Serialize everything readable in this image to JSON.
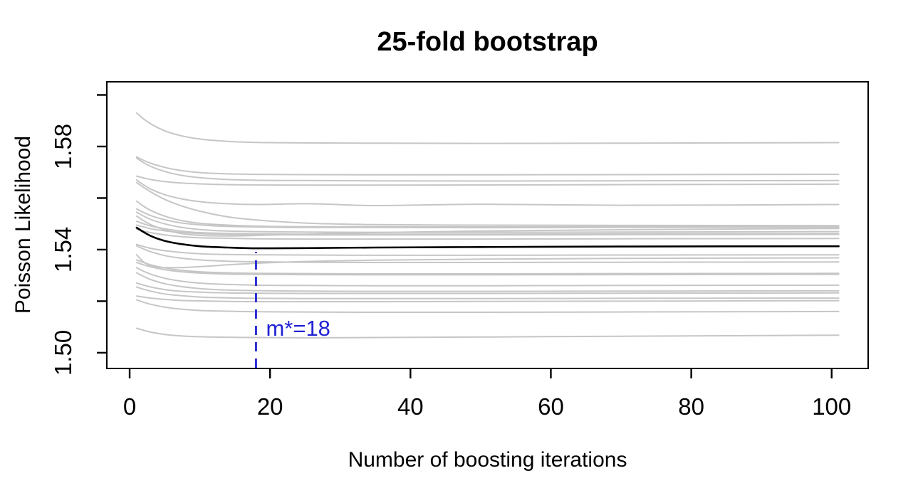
{
  "chart_data": {
    "type": "line",
    "title": "25-fold bootstrap",
    "xlabel": "Number of boosting iterations",
    "ylabel": "Poisson Likelihood",
    "grid": false,
    "legend": "none",
    "xlim": [
      -3.25,
      105.2
    ],
    "ylim": [
      1.4939,
      1.6051
    ],
    "xticks": [
      {
        "v": 0,
        "label": "0"
      },
      {
        "v": 20,
        "label": "20"
      },
      {
        "v": 40,
        "label": "40"
      },
      {
        "v": 60,
        "label": "60"
      },
      {
        "v": 80,
        "label": "80"
      },
      {
        "v": 100,
        "label": "100"
      }
    ],
    "yticks": [
      {
        "v": 1.5,
        "label": "1.50"
      },
      {
        "v": 1.52,
        "label": ""
      },
      {
        "v": 1.54,
        "label": "1.54"
      },
      {
        "v": 1.56,
        "label": ""
      },
      {
        "v": 1.58,
        "label": "1.58"
      },
      {
        "v": 1.6,
        "label": ""
      }
    ],
    "colors": {
      "replications": "#c6c6c6",
      "mean": "#000000",
      "annotation": "#2222d4"
    },
    "annotation": {
      "x": 18,
      "y_top": 1.5405,
      "label": "m*=18",
      "line_style": "dashed"
    },
    "x": [
      1,
      2,
      3,
      5,
      7,
      10,
      14,
      18,
      25,
      35,
      50,
      70,
      101
    ],
    "mean_series": {
      "name": "mean-cv-risk",
      "values": [
        1.5485,
        1.5468,
        1.5453,
        1.5434,
        1.5423,
        1.5413,
        1.5408,
        1.5405,
        1.5406,
        1.5408,
        1.541,
        1.5412,
        1.5413
      ]
    },
    "replication_series": [
      [
        1.593,
        1.5907,
        1.5888,
        1.5861,
        1.5844,
        1.5829,
        1.582,
        1.5816,
        1.5814,
        1.5813,
        1.5812,
        1.5813,
        1.5815
      ],
      [
        1.576,
        1.5746,
        1.5735,
        1.5719,
        1.5708,
        1.5699,
        1.5694,
        1.5692,
        1.5691,
        1.569,
        1.569,
        1.5691,
        1.5692
      ],
      [
        1.5755,
        1.5737,
        1.5723,
        1.5703,
        1.569,
        1.5679,
        1.5672,
        1.5669,
        1.5668,
        1.5667,
        1.5666,
        1.5667,
        1.5668
      ],
      [
        1.5685,
        1.5678,
        1.5672,
        1.5664,
        1.5659,
        1.5655,
        1.5652,
        1.5651,
        1.565,
        1.565,
        1.5651,
        1.5652,
        1.5654
      ],
      [
        1.567,
        1.5651,
        1.5635,
        1.5613,
        1.5599,
        1.5586,
        1.5578,
        1.5575,
        1.5578,
        1.5571,
        1.5576,
        1.5572,
        1.5575
      ],
      [
        1.566,
        1.5641,
        1.5624,
        1.5595,
        1.5573,
        1.5549,
        1.5527,
        1.5515,
        1.5503,
        1.5497,
        1.5495,
        1.5494,
        1.5493
      ],
      [
        1.5588,
        1.5568,
        1.5552,
        1.553,
        1.5515,
        1.5502,
        1.5495,
        1.5491,
        1.5489,
        1.5489,
        1.5488,
        1.5489,
        1.549
      ],
      [
        1.5558,
        1.5544,
        1.5532,
        1.5516,
        1.5505,
        1.5496,
        1.549,
        1.5488,
        1.5486,
        1.5486,
        1.5485,
        1.5486,
        1.5487
      ],
      [
        1.5545,
        1.553,
        1.5517,
        1.55,
        1.5488,
        1.5478,
        1.5472,
        1.547,
        1.5468,
        1.5467,
        1.5467,
        1.5468,
        1.547
      ],
      [
        1.553,
        1.5512,
        1.5497,
        1.5477,
        1.5464,
        1.5455,
        1.5453,
        1.5455,
        1.546,
        1.5466,
        1.5472,
        1.5477,
        1.5482
      ],
      [
        1.551,
        1.55,
        1.5492,
        1.5481,
        1.5473,
        1.5466,
        1.5463,
        1.5461,
        1.546,
        1.546,
        1.546,
        1.5461,
        1.5462
      ],
      [
        1.5495,
        1.5488,
        1.5481,
        1.5473,
        1.5467,
        1.5462,
        1.5459,
        1.5458,
        1.5457,
        1.5457,
        1.5457,
        1.5458,
        1.5459
      ],
      [
        1.548,
        1.5472,
        1.5466,
        1.5457,
        1.5451,
        1.5446,
        1.5444,
        1.5442,
        1.5441,
        1.5441,
        1.5441,
        1.5442,
        1.5443
      ],
      [
        1.542,
        1.5412,
        1.5405,
        1.5396,
        1.539,
        1.5384,
        1.5381,
        1.538,
        1.5379,
        1.5378,
        1.5378,
        1.5379,
        1.538
      ],
      [
        1.5415,
        1.5402,
        1.5392,
        1.5377,
        1.5368,
        1.536,
        1.5355,
        1.5353,
        1.5351,
        1.535,
        1.535,
        1.5351,
        1.5352
      ],
      [
        1.538,
        1.5352,
        1.5338,
        1.533,
        1.533,
        1.5334,
        1.5341,
        1.5347,
        1.5354,
        1.5359,
        1.5363,
        1.5366,
        1.5368
      ],
      [
        1.536,
        1.535,
        1.5341,
        1.5329,
        1.5321,
        1.5314,
        1.531,
        1.5308,
        1.5307,
        1.5306,
        1.5306,
        1.5307,
        1.5308
      ],
      [
        1.535,
        1.5341,
        1.5333,
        1.5322,
        1.5315,
        1.5309,
        1.5305,
        1.5304,
        1.5303,
        1.5302,
        1.5302,
        1.5303,
        1.5304
      ],
      [
        1.533,
        1.5316,
        1.5305,
        1.5289,
        1.5279,
        1.527,
        1.5265,
        1.5262,
        1.5261,
        1.526,
        1.526,
        1.5261,
        1.5262
      ],
      [
        1.531,
        1.5296,
        1.5284,
        1.5268,
        1.5258,
        1.5249,
        1.5243,
        1.5241,
        1.5239,
        1.5238,
        1.5238,
        1.5239,
        1.524
      ],
      [
        1.527,
        1.5262,
        1.5255,
        1.5245,
        1.5239,
        1.5235,
        1.5232,
        1.5231,
        1.523,
        1.523,
        1.523,
        1.5231,
        1.5232
      ],
      [
        1.5255,
        1.5246,
        1.5239,
        1.5228,
        1.5222,
        1.5216,
        1.5213,
        1.5211,
        1.521,
        1.521,
        1.521,
        1.5211,
        1.5212
      ],
      [
        1.522,
        1.5216,
        1.5212,
        1.5207,
        1.5203,
        1.5201,
        1.5199,
        1.5198,
        1.5198,
        1.5198,
        1.5199,
        1.52,
        1.5202
      ],
      [
        1.5205,
        1.5196,
        1.5188,
        1.5177,
        1.517,
        1.5164,
        1.5161,
        1.5159,
        1.5158,
        1.5157,
        1.5157,
        1.5158,
        1.516
      ],
      [
        1.5095,
        1.5087,
        1.508,
        1.5071,
        1.5066,
        1.5062,
        1.506,
        1.5059,
        1.5058,
        1.5059,
        1.5061,
        1.5064,
        1.5068
      ]
    ]
  }
}
